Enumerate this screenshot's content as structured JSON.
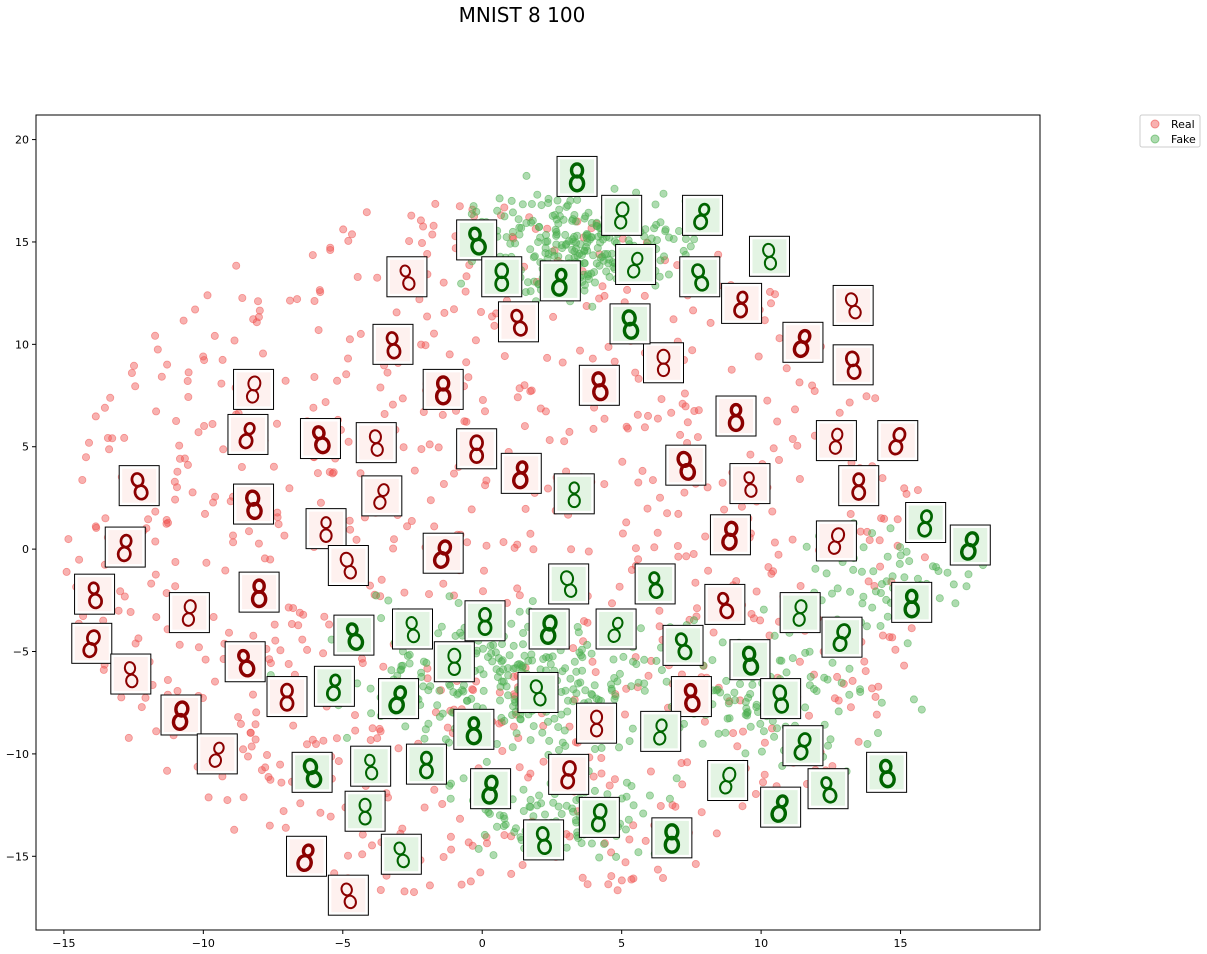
{
  "chart_data": {
    "type": "scatter",
    "title": "MNIST 8 100",
    "xlabel": "",
    "ylabel": "",
    "xlim": [
      -16,
      20
    ],
    "ylim": [
      -18.6,
      21.2
    ],
    "xticks": [
      -15,
      -10,
      -5,
      0,
      5,
      10,
      15
    ],
    "yticks": [
      -15,
      -10,
      -5,
      0,
      5,
      10,
      15,
      20
    ],
    "grid": false,
    "legend_position": "outside-top-right",
    "colors": {
      "real": "#ef5350",
      "fake": "#4caf50",
      "real_digit": "#8b0000",
      "fake_digit": "#006400"
    },
    "series": [
      {
        "name": "Real",
        "sample_count": 900,
        "region": "whole-plot"
      },
      {
        "name": "Fake",
        "sample_count": 900,
        "region": "upper-and-lower-center"
      }
    ],
    "thumbnails": {
      "real": [
        [
          -2.7,
          13.3
        ],
        [
          -3.2,
          10.0
        ],
        [
          -1.4,
          7.8
        ],
        [
          -8.2,
          7.8
        ],
        [
          -8.4,
          5.6
        ],
        [
          -5.8,
          5.4
        ],
        [
          -3.8,
          5.2
        ],
        [
          -0.2,
          4.9
        ],
        [
          1.4,
          3.7
        ],
        [
          -3.6,
          2.6
        ],
        [
          -12.3,
          3.1
        ],
        [
          -8.2,
          2.2
        ],
        [
          -5.6,
          1.0
        ],
        [
          -12.8,
          0.1
        ],
        [
          -1.4,
          -0.2
        ],
        [
          -4.8,
          -0.8
        ],
        [
          -13.9,
          -2.2
        ],
        [
          -8.0,
          -2.1
        ],
        [
          -10.5,
          -3.1
        ],
        [
          -14.0,
          -4.6
        ],
        [
          -8.5,
          -5.5
        ],
        [
          -12.6,
          -6.1
        ],
        [
          -7.0,
          -7.2
        ],
        [
          -10.8,
          -8.1
        ],
        [
          -9.5,
          -10.0
        ],
        [
          1.3,
          11.1
        ],
        [
          4.2,
          8.0
        ],
        [
          6.5,
          9.1
        ],
        [
          9.3,
          12.0
        ],
        [
          11.5,
          10.1
        ],
        [
          13.3,
          11.9
        ],
        [
          13.3,
          9.0
        ],
        [
          9.1,
          6.5
        ],
        [
          12.7,
          5.3
        ],
        [
          14.9,
          5.3
        ],
        [
          7.3,
          4.1
        ],
        [
          9.6,
          3.2
        ],
        [
          13.5,
          3.1
        ],
        [
          8.9,
          0.7
        ],
        [
          12.7,
          0.4
        ],
        [
          8.7,
          -2.7
        ],
        [
          7.5,
          -7.2
        ],
        [
          4.1,
          -8.5
        ],
        [
          3.1,
          -11.0
        ],
        [
          -6.3,
          -15.0
        ],
        [
          -4.8,
          -16.9
        ]
      ],
      "fake": [
        [
          3.4,
          18.2
        ],
        [
          5.0,
          16.3
        ],
        [
          7.9,
          16.3
        ],
        [
          -0.2,
          15.1
        ],
        [
          10.3,
          14.3
        ],
        [
          0.7,
          13.3
        ],
        [
          2.8,
          13.1
        ],
        [
          5.5,
          13.9
        ],
        [
          7.8,
          13.3
        ],
        [
          5.3,
          11.0
        ],
        [
          3.3,
          2.7
        ],
        [
          15.9,
          1.3
        ],
        [
          17.5,
          0.2
        ],
        [
          3.1,
          -1.7
        ],
        [
          6.2,
          -1.7
        ],
        [
          15.4,
          -2.6
        ],
        [
          11.4,
          -3.1
        ],
        [
          12.9,
          -4.3
        ],
        [
          -4.6,
          -4.2
        ],
        [
          -2.5,
          -3.9
        ],
        [
          0.1,
          -3.5
        ],
        [
          2.4,
          -3.9
        ],
        [
          4.8,
          -3.9
        ],
        [
          7.2,
          -4.7
        ],
        [
          9.6,
          -5.4
        ],
        [
          -1.0,
          -5.5
        ],
        [
          -5.3,
          -6.7
        ],
        [
          -3.0,
          -7.3
        ],
        [
          2.0,
          -7.0
        ],
        [
          10.7,
          -7.3
        ],
        [
          -0.3,
          -8.8
        ],
        [
          6.4,
          -8.9
        ],
        [
          11.5,
          -9.6
        ],
        [
          -6.1,
          -10.9
        ],
        [
          -4.0,
          -10.6
        ],
        [
          -2.0,
          -10.5
        ],
        [
          0.3,
          -11.7
        ],
        [
          8.8,
          -11.3
        ],
        [
          12.4,
          -11.7
        ],
        [
          14.5,
          -10.9
        ],
        [
          -4.2,
          -12.8
        ],
        [
          4.2,
          -13.1
        ],
        [
          10.7,
          -12.6
        ],
        [
          -2.9,
          -14.9
        ],
        [
          2.2,
          -14.2
        ],
        [
          6.8,
          -14.1
        ]
      ]
    }
  }
}
